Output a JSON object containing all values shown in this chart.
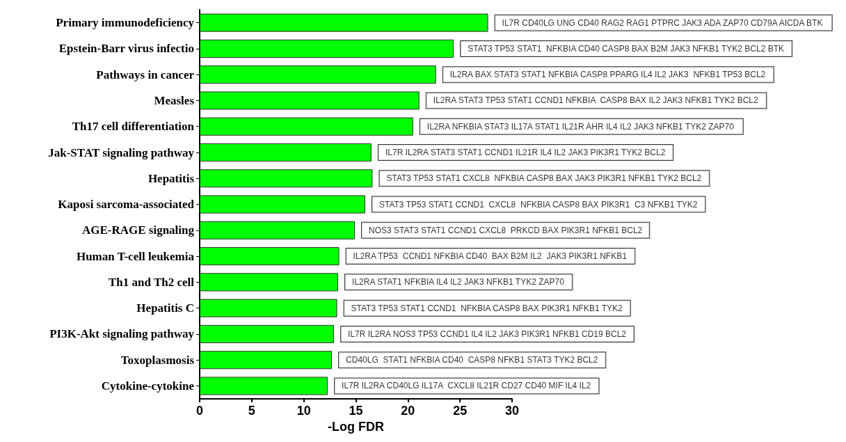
{
  "chart_data": {
    "type": "bar",
    "orientation": "horizontal",
    "xlabel": "-Log FDR",
    "color": "#00ff00",
    "categories": [
      "Primary immunodeficiency",
      "Epstein-Barr virus infectio",
      "Pathways in cancer",
      "Measles",
      "Th17 cell differentiation",
      "Jak-STAT signaling pathway",
      "Hepatitis",
      "Kaposi sarcoma-associated",
      "AGE-RAGE signaling",
      "Human T-cell leukemia",
      "Th1 and Th2 cell",
      "Hepatitis C",
      "PI3K-Akt signaling pathway",
      "Toxoplasmosis",
      "Cytokine-cytokine"
    ],
    "values": [
      27.7,
      24.4,
      22.7,
      21.1,
      20.5,
      16.5,
      16.6,
      15.9,
      14.9,
      13.4,
      13.3,
      13.2,
      12.9,
      12.7,
      12.3
    ],
    "xlim": [
      0,
      30
    ],
    "xticks": [
      0,
      5,
      10,
      15,
      20,
      25,
      30
    ],
    "grid": false,
    "annotations": [
      {
        "text": "IL7R CD40LG UNG CD40 RAG2 RAG1 PTPRC JAK3 ADA ZAP70 CD79A AICDA BTK",
        "x": 27.7,
        "y": "Primary immunodeficiency"
      },
      {
        "text": "STAT3 TP53 STAT1  NFKBIA CD40 CASP8 BAX B2M JAK3 NFKB1 TYK2 BCL2 BTK",
        "x": 24.4,
        "y": "Epstein-Barr virus infectio"
      },
      {
        "text": "IL2RA BAX STAT3 STAT1 NFKBIA CASP8 PPARG IL4 IL2 JAK3  NFKB1 TP53 BCL2",
        "x": 22.7,
        "y": "Pathways in cancer"
      },
      {
        "text": "IL2RA STAT3 TP53 STAT1 CCND1 NFKBIA  CASP8 BAX IL2 JAK3 NFKB1 TYK2 BCL2",
        "x": 21.1,
        "y": "Measles"
      },
      {
        "text": "IL2RA NFKBIA STAT3 IL17A STAT1 IL21R AHR IL4 IL2 JAK3 NFKB1 TYK2 ZAP70",
        "x": 20.5,
        "y": "Th17 cell differentiation"
      },
      {
        "text": "IL7R IL2RA STAT3 STAT1 CCND1 IL21R IL4 IL2 JAK3 PIK3R1 TYK2 BCL2",
        "x": 16.5,
        "y": "Jak-STAT signaling pathway"
      },
      {
        "text": "STAT3 TP53 STAT1 CXCL8  NFKBIA CASP8 BAX JAK3 PIK3R1 NFKB1 TYK2 BCL2",
        "x": 16.6,
        "y": "Hepatitis"
      },
      {
        "text": "STAT3 TP53 STAT1 CCND1  CXCL8  NFKBIA CASP8 BAX PIK3R1  C3 NFKB1 TYK2",
        "x": 15.9,
        "y": "Kaposi sarcoma-associated"
      },
      {
        "text": "NOS3 STAT3 STAT1 CCND1 CXCL8  PRKCD BAX PIK3R1 NFKB1 BCL2",
        "x": 14.9,
        "y": "AGE-RAGE signaling"
      },
      {
        "text": "IL2RA TP53  CCND1 NFKBIA CD40  BAX B2M IL2  JAK3 PIK3R1 NFKB1",
        "x": 13.4,
        "y": "Human T-cell leukemia"
      },
      {
        "text": "IL2RA STAT1 NFKBIA IL4 IL2 JAK3 NFKB1 TYK2 ZAP70",
        "x": 13.3,
        "y": "Th1 and Th2 cell"
      },
      {
        "text": "STAT3 TP53 STAT1 CCND1  NFKBIA CASP8 BAX PIK3R1 NFKB1 TYK2",
        "x": 13.2,
        "y": "Hepatitis C"
      },
      {
        "text": "IL7R IL2RA NOS3 TP53 CCND1 IL4 IL2 JAK3 PIK3R1 NFKB1 CD19 BCL2",
        "x": 12.9,
        "y": "PI3K-Akt signaling pathway"
      },
      {
        "text": "CD40LG  STAT1 NFKBIA CD40  CASP8 NFKB1 STAT3 TYK2 BCL2",
        "x": 12.7,
        "y": "Toxoplasmosis"
      },
      {
        "text": "IL7R IL2RA CD40LG IL17A  CXCL8 IL21R CD27 CD40 MIF IL4 IL2",
        "x": 12.3,
        "y": "Cytokine-cytokine"
      }
    ]
  }
}
